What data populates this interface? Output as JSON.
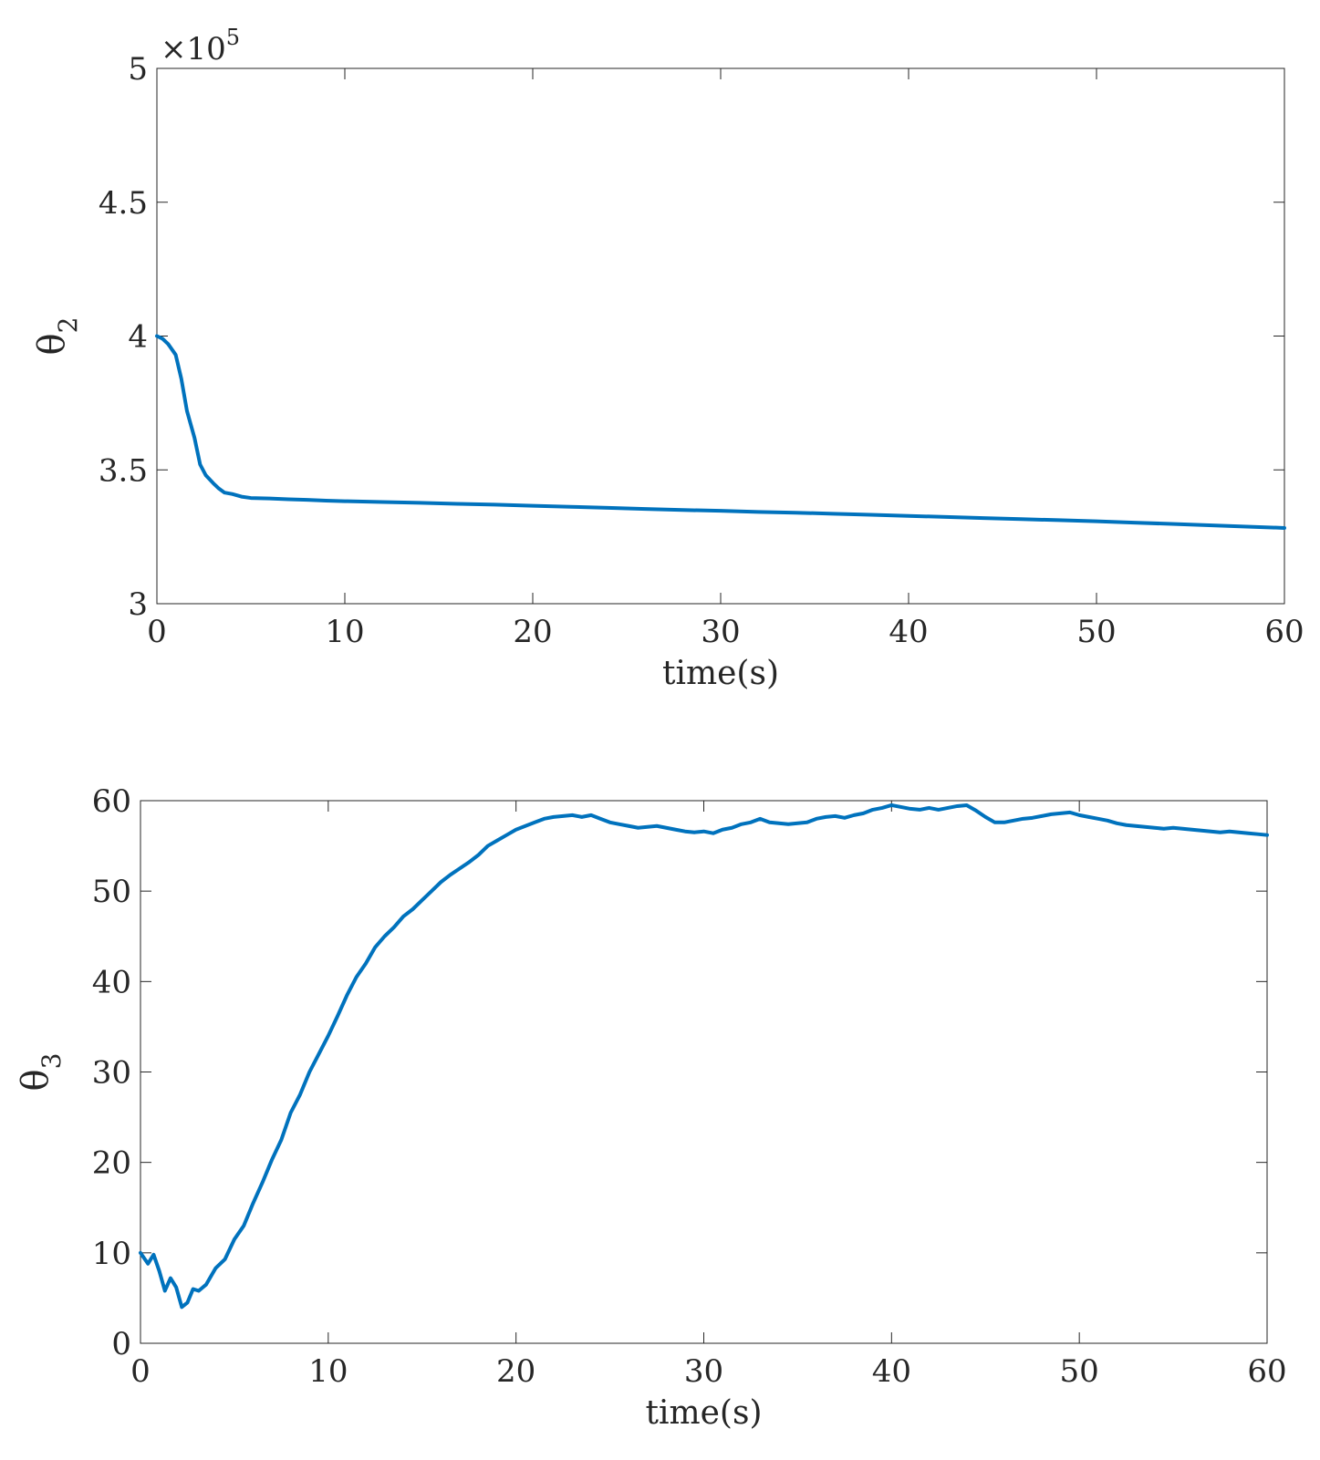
{
  "colors": {
    "series": "#0072BD",
    "axes": "#262626"
  },
  "chart_data": [
    {
      "type": "line",
      "title": "",
      "xlabel": "time(s)",
      "ylabel": {
        "main": "θ",
        "sub": "2"
      },
      "y_exponent": {
        "base": "×10",
        "power": "5"
      },
      "xlim": [
        0,
        60
      ],
      "ylim": [
        3,
        5
      ],
      "x_ticks": [
        0,
        10,
        20,
        30,
        40,
        50,
        60
      ],
      "y_ticks": [
        3,
        3.5,
        4,
        4.5,
        5
      ],
      "x_tick_labels": [
        "0",
        "10",
        "20",
        "30",
        "40",
        "50",
        "60"
      ],
      "y_tick_labels": [
        "3",
        "3.5",
        "4",
        "4.5",
        "5"
      ],
      "grid": false,
      "series": [
        {
          "x": [
            0,
            0.3,
            0.6,
            1.0,
            1.3,
            1.6,
            2.0,
            2.3,
            2.6,
            3.0,
            3.3,
            3.6,
            4.0,
            4.5,
            5,
            6,
            7,
            8,
            9,
            10,
            12,
            14,
            16,
            18,
            20,
            22,
            24,
            26,
            28,
            30,
            32,
            34,
            36,
            38,
            40,
            42,
            44,
            46,
            48,
            50,
            52,
            54,
            56,
            58,
            60
          ],
          "y": [
            4.0,
            3.99,
            3.97,
            3.93,
            3.84,
            3.72,
            3.62,
            3.52,
            3.48,
            3.45,
            3.43,
            3.415,
            3.41,
            3.4,
            3.395,
            3.393,
            3.39,
            3.388,
            3.385,
            3.383,
            3.38,
            3.377,
            3.373,
            3.37,
            3.366,
            3.362,
            3.358,
            3.354,
            3.35,
            3.347,
            3.343,
            3.34,
            3.336,
            3.332,
            3.328,
            3.324,
            3.32,
            3.316,
            3.312,
            3.308,
            3.303,
            3.298,
            3.293,
            3.288,
            3.283
          ]
        }
      ]
    },
    {
      "type": "line",
      "title": "",
      "xlabel": "time(s)",
      "ylabel": {
        "main": "θ",
        "sub": "3"
      },
      "xlim": [
        0,
        60
      ],
      "ylim": [
        0,
        60
      ],
      "x_ticks": [
        0,
        10,
        20,
        30,
        40,
        50,
        60
      ],
      "y_ticks": [
        0,
        10,
        20,
        30,
        40,
        50,
        60
      ],
      "x_tick_labels": [
        "0",
        "10",
        "20",
        "30",
        "40",
        "50",
        "60"
      ],
      "y_tick_labels": [
        "0",
        "10",
        "20",
        "30",
        "40",
        "50",
        "60"
      ],
      "grid": false,
      "series": [
        {
          "x": [
            0,
            0.4,
            0.7,
            1.0,
            1.3,
            1.6,
            1.9,
            2.2,
            2.5,
            2.8,
            3.1,
            3.5,
            4,
            4.5,
            5,
            5.5,
            6,
            6.5,
            7,
            7.5,
            8,
            8.5,
            9,
            9.5,
            10,
            10.5,
            11,
            11.5,
            12,
            12.5,
            13,
            13.5,
            14,
            14.5,
            15,
            15.5,
            16,
            16.5,
            17,
            17.5,
            18,
            18.5,
            19,
            19.5,
            20,
            20.5,
            21,
            21.5,
            22,
            22.5,
            23,
            23.5,
            24,
            24.5,
            25,
            25.5,
            26,
            26.5,
            27,
            27.5,
            28,
            28.5,
            29,
            29.5,
            30,
            30.5,
            31,
            31.5,
            32,
            32.5,
            33,
            33.5,
            34,
            34.5,
            35,
            35.5,
            36,
            36.5,
            37,
            37.5,
            38,
            38.5,
            39,
            39.5,
            40,
            40.5,
            41,
            41.5,
            42,
            42.5,
            43,
            43.5,
            44,
            44.5,
            45,
            45.5,
            46,
            46.5,
            47,
            47.5,
            48,
            48.5,
            49,
            49.5,
            50,
            50.5,
            51,
            51.5,
            52,
            52.5,
            53,
            53.5,
            54,
            54.5,
            55,
            55.5,
            56,
            56.5,
            57,
            57.5,
            58,
            58.5,
            59,
            59.5,
            60
          ],
          "y": [
            10,
            8.8,
            9.8,
            8.0,
            5.8,
            7.2,
            6.2,
            4.0,
            4.5,
            6.0,
            5.8,
            6.5,
            8.3,
            9.3,
            11.5,
            13.0,
            15.5,
            17.8,
            20.3,
            22.5,
            25.5,
            27.5,
            30.0,
            32.0,
            34.0,
            36.2,
            38.5,
            40.5,
            42.0,
            43.8,
            45.0,
            46.0,
            47.2,
            48.0,
            49.0,
            50.0,
            51.0,
            51.8,
            52.5,
            53.2,
            54.0,
            55.0,
            55.6,
            56.2,
            56.8,
            57.2,
            57.6,
            58.0,
            58.2,
            58.3,
            58.4,
            58.2,
            58.4,
            58.0,
            57.6,
            57.4,
            57.2,
            57.0,
            57.1,
            57.2,
            57.0,
            56.8,
            56.6,
            56.5,
            56.6,
            56.4,
            56.8,
            57.0,
            57.4,
            57.6,
            58.0,
            57.6,
            57.5,
            57.4,
            57.5,
            57.6,
            58.0,
            58.2,
            58.3,
            58.1,
            58.4,
            58.6,
            59.0,
            59.2,
            59.5,
            59.3,
            59.1,
            59.0,
            59.2,
            59.0,
            59.2,
            59.4,
            59.5,
            58.9,
            58.2,
            57.6,
            57.6,
            57.8,
            58.0,
            58.1,
            58.3,
            58.5,
            58.6,
            58.7,
            58.4,
            58.2,
            58.0,
            57.8,
            57.5,
            57.3,
            57.2,
            57.1,
            57.0,
            56.9,
            57.0,
            56.9,
            56.8,
            56.7,
            56.6,
            56.5,
            56.6,
            56.5,
            56.4,
            56.3,
            56.2
          ]
        }
      ]
    }
  ]
}
